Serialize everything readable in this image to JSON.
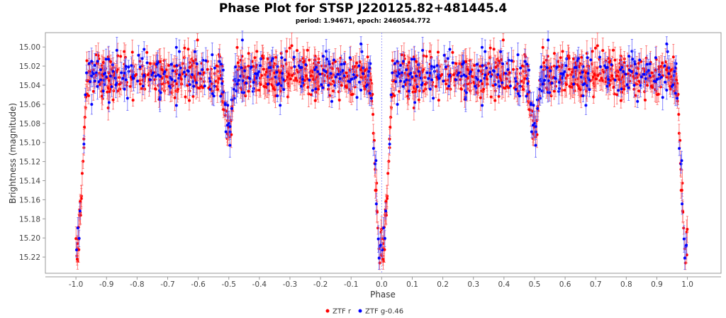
{
  "chart_data": {
    "type": "scatter",
    "title": "Phase Plot for STSP J220125.82+481445.4",
    "subtitle": "period: 1.94671, epoch: 2460544.772",
    "xlabel": "Phase",
    "ylabel": "Brightness (magnitude)",
    "xlim": [
      -1.1,
      1.11
    ],
    "ylim": [
      14.985,
      15.237
    ],
    "y_inverted": true,
    "xticks": [
      "-1.0",
      "-0.9",
      "-0.8",
      "-0.7",
      "-0.6",
      "-0.5",
      "-0.4",
      "-0.3",
      "-0.2",
      "-0.1",
      "0.0",
      "0.1",
      "0.2",
      "0.3",
      "0.4",
      "0.5",
      "0.6",
      "0.7",
      "0.8",
      "0.9",
      "1.0"
    ],
    "yticks": [
      "15.00",
      "15.02",
      "15.04",
      "15.06",
      "15.08",
      "15.10",
      "15.12",
      "15.14",
      "15.16",
      "15.18",
      "15.20",
      "15.22"
    ],
    "grid": false,
    "legend_position": "bottom-center",
    "reference_line_x": 0.0,
    "light_curve_model": {
      "baseline_mag": 15.03,
      "primary_eclipse": {
        "phase": 0.0,
        "min_mag": 15.21,
        "half_width_phase": 0.035
      },
      "secondary_eclipse": {
        "phase": 0.5,
        "min_mag": 15.085,
        "half_width_phase": 0.03
      },
      "scatter_mag": 0.011,
      "typical_error_mag": 0.01
    },
    "series": [
      {
        "name": "ZTF r",
        "color": "#ff0000",
        "errcolor": "#ff6666",
        "points_per_cycle": 650
      },
      {
        "name": "ZTF g-0.46",
        "color": "#0000ff",
        "errcolor": "#6666ff",
        "points_per_cycle": 260
      }
    ]
  }
}
